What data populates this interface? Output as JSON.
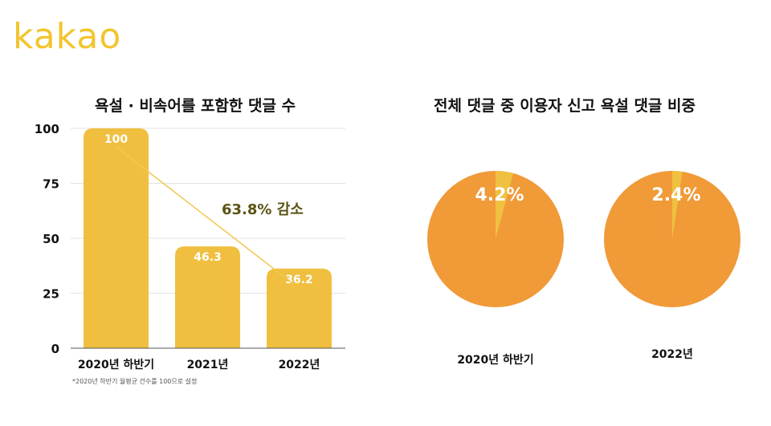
{
  "logo": "kakao",
  "chart_data": [
    {
      "type": "bar",
      "title": "욕설 · 비속어를 포함한 댓글 수",
      "categories": [
        "2020년 하반기",
        "2021년",
        "2022년"
      ],
      "values": [
        100,
        46.3,
        36.2
      ],
      "data_labels": [
        "100",
        "46.3",
        "36.2"
      ],
      "ylim": [
        0,
        100
      ],
      "yticks": [
        0,
        25,
        50,
        75,
        100
      ],
      "grid": true,
      "annotation": "63.8% 감소",
      "footnote": "*2020년 하반기 월평균 건수를 100으로 설정",
      "colors": {
        "bar": "#f0bf40",
        "annotation": "#5a5413",
        "trend_line": "#f0c850"
      }
    },
    {
      "type": "pie",
      "title": "전체 댓글 중 이용자 신고 욕설 댓글 비중",
      "pies": [
        {
          "label": "2020년 하반기",
          "value": 4.2,
          "value_label": "4.2%"
        },
        {
          "label": "2022년",
          "value": 2.4,
          "value_label": "2.4%"
        }
      ],
      "colors": {
        "slice": "#f0c040",
        "rest": "#f09a38"
      }
    }
  ]
}
